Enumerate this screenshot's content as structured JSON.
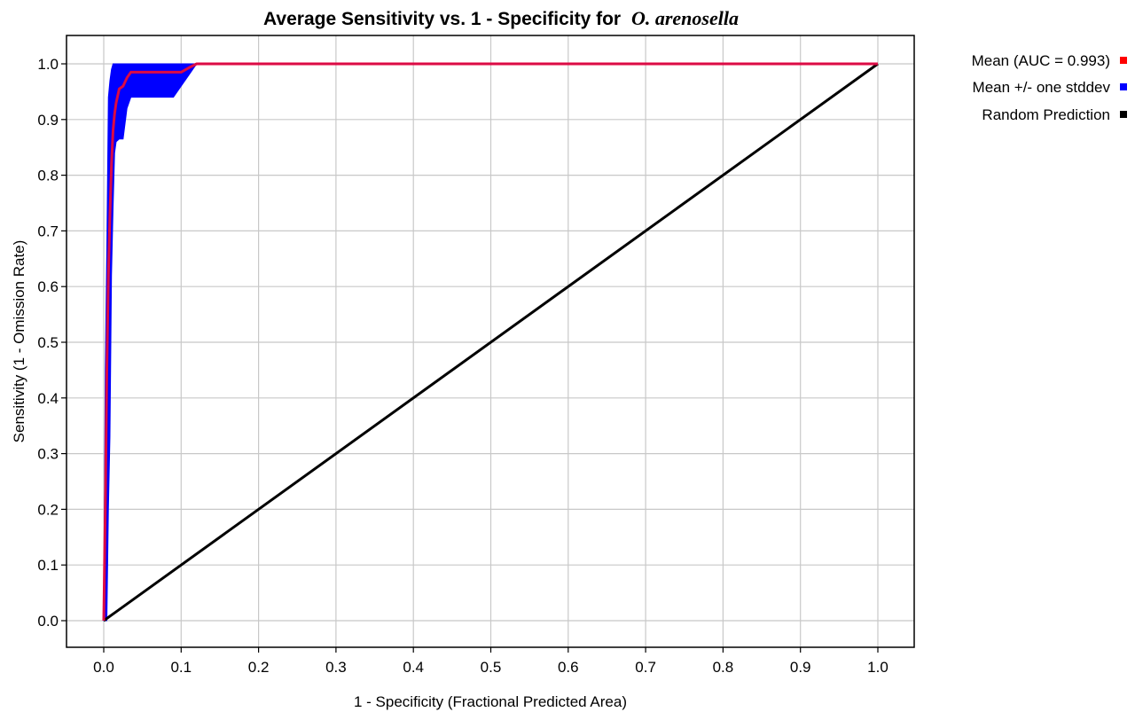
{
  "chart_data": {
    "type": "line",
    "title": "Average Sensitivity vs. 1 - Specificity for",
    "title_species": "O. arenosella",
    "xlabel": "1 - Specificity (Fractional Predicted Area)",
    "ylabel": "Sensitivity (1 - Omission Rate)",
    "xlim": [
      0,
      1
    ],
    "ylim": [
      0,
      1
    ],
    "x_ticks": [
      "0.0",
      "0.1",
      "0.2",
      "0.3",
      "0.4",
      "0.5",
      "0.6",
      "0.7",
      "0.8",
      "0.9",
      "1.0"
    ],
    "y_ticks": [
      "0.0",
      "0.1",
      "0.2",
      "0.3",
      "0.4",
      "0.5",
      "0.6",
      "0.7",
      "0.8",
      "0.9",
      "1.0"
    ],
    "grid": true,
    "legend_position": "right",
    "series": [
      {
        "name": "Mean (AUC = 0.993)",
        "color": "#ff0000",
        "x": [
          0.0,
          0.002,
          0.004,
          0.006,
          0.008,
          0.01,
          0.012,
          0.014,
          0.016,
          0.02,
          0.025,
          0.03,
          0.035,
          0.04,
          0.06,
          0.08,
          0.1,
          0.11,
          0.12,
          0.2,
          0.4,
          0.6,
          0.8,
          1.0
        ],
        "y": [
          0.0,
          0.2,
          0.45,
          0.62,
          0.73,
          0.82,
          0.88,
          0.91,
          0.93,
          0.955,
          0.96,
          0.975,
          0.985,
          0.985,
          0.985,
          0.985,
          0.985,
          0.993,
          1.0,
          1.0,
          1.0,
          1.0,
          1.0,
          1.0
        ]
      },
      {
        "name": "Mean +/- one stddev",
        "color": "#0000ff",
        "upper_x": [
          0.0,
          0.002,
          0.004,
          0.006,
          0.008,
          0.01,
          0.012,
          1.0
        ],
        "upper_y": [
          0.0,
          0.45,
          0.67,
          0.94,
          0.97,
          0.99,
          1.0,
          1.0
        ],
        "lower_x": [
          0.0,
          0.004,
          0.006,
          0.008,
          0.01,
          0.012,
          0.014,
          0.016,
          0.02,
          0.025,
          0.03,
          0.035,
          0.04,
          0.06,
          0.08,
          0.09,
          0.1,
          0.11,
          0.12,
          1.0
        ],
        "lower_y": [
          0.0,
          0.0,
          0.2,
          0.33,
          0.62,
          0.74,
          0.84,
          0.86,
          0.865,
          0.865,
          0.92,
          0.94,
          0.94,
          0.94,
          0.94,
          0.94,
          0.96,
          0.98,
          1.0,
          1.0
        ]
      },
      {
        "name": "Random Prediction",
        "color": "#000000",
        "x": [
          0.0,
          1.0
        ],
        "y": [
          0.0,
          1.0
        ]
      }
    ]
  }
}
